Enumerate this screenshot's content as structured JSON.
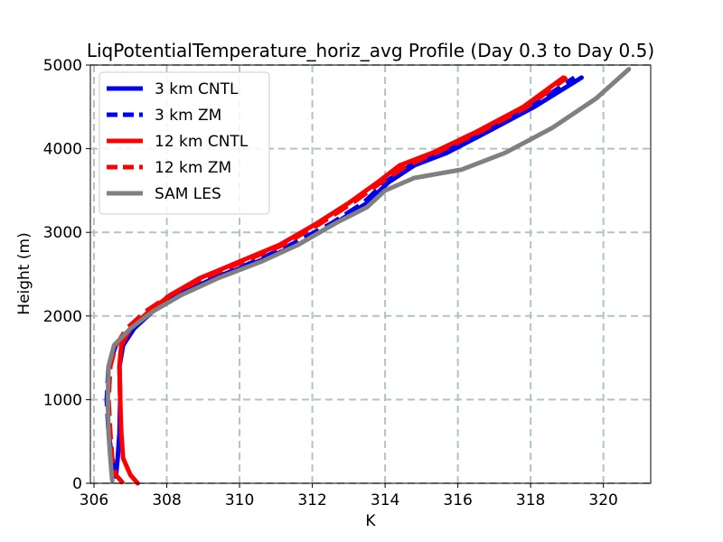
{
  "chart_data": {
    "type": "line",
    "title": "LiqPotentialTemperature_horiz_avg Profile (Day 0.3 to Day 0.5)",
    "xlabel": "K",
    "ylabel": "Height (m)",
    "xlim": [
      305.9,
      321.3
    ],
    "ylim": [
      0,
      5000
    ],
    "xticks": [
      306,
      308,
      310,
      312,
      314,
      316,
      318,
      320
    ],
    "yticks": [
      0,
      1000,
      2000,
      3000,
      4000,
      5000
    ],
    "grid": true,
    "legend_position": "upper-left",
    "series": [
      {
        "name": "3 km CNTL",
        "color": "#0000ee",
        "dash": "solid",
        "points": [
          [
            306.6,
            80
          ],
          [
            306.65,
            300
          ],
          [
            306.7,
            600
          ],
          [
            306.72,
            1000
          ],
          [
            306.7,
            1400
          ],
          [
            306.8,
            1650
          ],
          [
            307.1,
            1850
          ],
          [
            307.6,
            2050
          ],
          [
            308.3,
            2250
          ],
          [
            309.3,
            2450
          ],
          [
            310.5,
            2650
          ],
          [
            311.6,
            2850
          ],
          [
            312.6,
            3100
          ],
          [
            313.5,
            3350
          ],
          [
            314.1,
            3600
          ],
          [
            314.8,
            3800
          ],
          [
            315.7,
            3950
          ],
          [
            316.8,
            4200
          ],
          [
            318.1,
            4500
          ],
          [
            319.4,
            4850
          ]
        ]
      },
      {
        "name": "3 km ZM",
        "color": "#0000ee",
        "dash": "dashed",
        "points": [
          [
            306.55,
            80
          ],
          [
            306.5,
            300
          ],
          [
            306.4,
            600
          ],
          [
            306.35,
            1000
          ],
          [
            306.4,
            1400
          ],
          [
            306.6,
            1650
          ],
          [
            307.0,
            1850
          ],
          [
            307.6,
            2050
          ],
          [
            308.3,
            2250
          ],
          [
            309.3,
            2450
          ],
          [
            310.4,
            2650
          ],
          [
            311.4,
            2850
          ],
          [
            312.5,
            3100
          ],
          [
            313.4,
            3350
          ],
          [
            314.0,
            3600
          ],
          [
            314.7,
            3800
          ],
          [
            315.6,
            3950
          ],
          [
            316.7,
            4200
          ],
          [
            318.0,
            4500
          ],
          [
            319.2,
            4850
          ]
        ]
      },
      {
        "name": "12 km CNTL",
        "color": "#ff0000",
        "dash": "solid",
        "points": [
          [
            307.2,
            0
          ],
          [
            307.0,
            100
          ],
          [
            306.8,
            300
          ],
          [
            306.75,
            600
          ],
          [
            306.72,
            1000
          ],
          [
            306.7,
            1400
          ],
          [
            306.75,
            1650
          ],
          [
            307.0,
            1850
          ],
          [
            307.5,
            2050
          ],
          [
            308.1,
            2250
          ],
          [
            308.9,
            2450
          ],
          [
            310.0,
            2650
          ],
          [
            311.1,
            2850
          ],
          [
            312.1,
            3100
          ],
          [
            313.0,
            3350
          ],
          [
            313.8,
            3600
          ],
          [
            314.4,
            3800
          ],
          [
            315.3,
            3950
          ],
          [
            316.5,
            4200
          ],
          [
            317.8,
            4500
          ],
          [
            318.9,
            4850
          ]
        ]
      },
      {
        "name": "12 km ZM",
        "color": "#ff0000",
        "dash": "dashed",
        "points": [
          [
            306.8,
            0
          ],
          [
            306.6,
            100
          ],
          [
            306.5,
            300
          ],
          [
            306.45,
            600
          ],
          [
            306.4,
            1000
          ],
          [
            306.45,
            1400
          ],
          [
            306.6,
            1650
          ],
          [
            306.9,
            1850
          ],
          [
            307.4,
            2050
          ],
          [
            308.1,
            2250
          ],
          [
            309.0,
            2450
          ],
          [
            310.1,
            2650
          ],
          [
            311.2,
            2850
          ],
          [
            312.2,
            3100
          ],
          [
            313.1,
            3350
          ],
          [
            313.9,
            3600
          ],
          [
            314.6,
            3800
          ],
          [
            315.4,
            3950
          ],
          [
            316.6,
            4200
          ],
          [
            317.9,
            4500
          ],
          [
            319.0,
            4850
          ]
        ]
      },
      {
        "name": "SAM LES",
        "color": "#808080",
        "dash": "solid",
        "points": [
          [
            306.5,
            30
          ],
          [
            306.45,
            300
          ],
          [
            306.4,
            600
          ],
          [
            306.38,
            1000
          ],
          [
            306.4,
            1400
          ],
          [
            306.55,
            1650
          ],
          [
            307.0,
            1850
          ],
          [
            307.6,
            2050
          ],
          [
            308.4,
            2250
          ],
          [
            309.4,
            2450
          ],
          [
            310.6,
            2650
          ],
          [
            311.6,
            2850
          ],
          [
            312.6,
            3100
          ],
          [
            313.5,
            3300
          ],
          [
            314.0,
            3500
          ],
          [
            314.8,
            3650
          ],
          [
            316.1,
            3750
          ],
          [
            317.3,
            3950
          ],
          [
            318.6,
            4250
          ],
          [
            319.8,
            4600
          ],
          [
            320.7,
            4950
          ]
        ]
      }
    ]
  }
}
